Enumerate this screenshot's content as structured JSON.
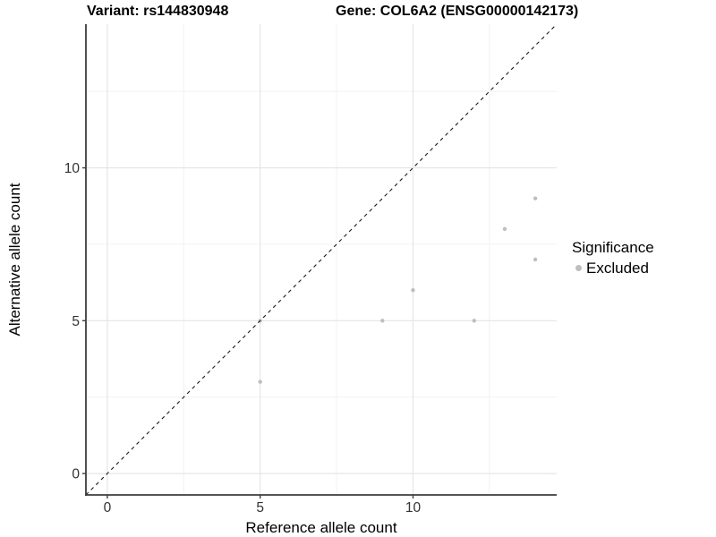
{
  "chart_data": {
    "type": "scatter",
    "titles": {
      "left": "Variant: rs144830948",
      "right": "Gene: COL6A2 (ENSG00000142173)"
    },
    "xlabel": "Reference allele count",
    "ylabel": "Alternative allele count",
    "xlim": [
      -0.7,
      14.7
    ],
    "ylim": [
      -0.7,
      14.7
    ],
    "x_ticks": [
      0,
      5,
      10
    ],
    "y_ticks": [
      0,
      5,
      10
    ],
    "minor_ticks": [
      2.5,
      7.5,
      12.5
    ],
    "grid": "on",
    "identity_line": {
      "style": "dashed",
      "from": [
        -0.7,
        -0.7
      ],
      "to": [
        14.7,
        14.7
      ],
      "color": "#1a1a1a"
    },
    "series": [
      {
        "name": "Excluded",
        "color": "#bebebe",
        "points": [
          [
            5,
            3
          ],
          [
            5,
            5
          ],
          [
            9,
            5
          ],
          [
            10,
            6
          ],
          [
            12,
            5
          ],
          [
            13,
            8
          ],
          [
            14,
            7
          ],
          [
            14,
            9
          ]
        ]
      }
    ],
    "legend": {
      "title": "Significance",
      "position": "right",
      "entries": [
        {
          "label": "Excluded",
          "color": "#bebebe",
          "marker": "circle"
        }
      ]
    },
    "colors": {
      "grid_major": "#e5e5e5",
      "grid_minor": "#f2f2f2",
      "axis": "#3d3d3d",
      "tick_text": "#333333",
      "background": "#ffffff"
    }
  }
}
